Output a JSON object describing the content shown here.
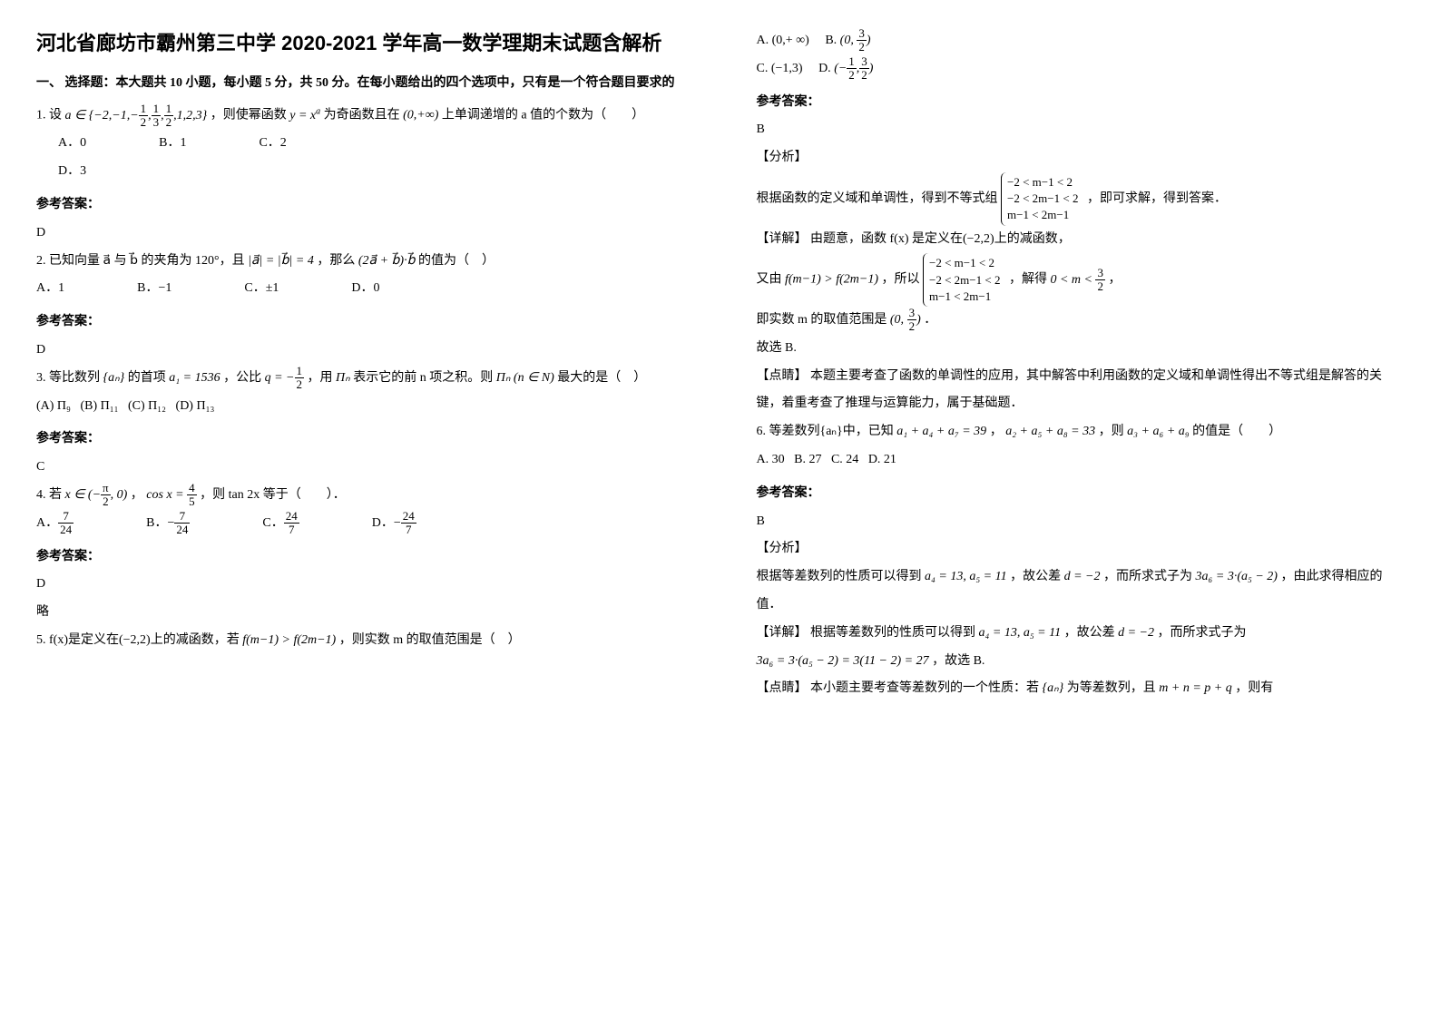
{
  "title": "河北省廊坊市霸州第三中学 2020-2021 学年高一数学理期末试题含解析",
  "section1_head": "一、 选择题：本大题共 10 小题，每小题 5 分，共 50 分。在每小题给出的四个选项中，只有是一个符合题目要求的",
  "q1_stem_pre": "1. 设",
  "q1_set": "a ∈ {−2,−1,−",
  "q1_set2": ",1,2,3}",
  "q1_stem_mid": "，则使幂函数 ",
  "q1_fn": "y = x",
  "q1_stem_post": " 为奇函数且在 ",
  "q1_interval": "(0,+∞)",
  "q1_tail": " 上单调递增的 a 值的个数为（　　）",
  "q1_A": "A．0",
  "q1_B": "B．1",
  "q1_C": "C．2",
  "q1_D": "D．3",
  "ref_label": "参考答案：",
  "q1_ans": "D",
  "q2_stem_a": "2. 已知向量 a⃗ 与 b⃗ 的夹角为 120°，且 ",
  "q2_norm": "|a⃗| = |b⃗| = 4",
  "q2_stem_b": "，那么 ",
  "q2_expr": "(2a⃗ + b⃗)·b⃗",
  "q2_stem_c": " 的值为（　）",
  "q2_A": "A．1",
  "q2_B": "B．−1",
  "q2_C": "C．±1",
  "q2_D": "D．0",
  "q2_ans": "D",
  "q3_stem_a": "3. 等比数列 ",
  "q3_seq": "{aₙ}",
  "q3_stem_b": " 的首项 ",
  "q3_a1": "a₁ = 1536",
  "q3_stem_c": "，公比 ",
  "q3_q": "q = −",
  "q3_stem_d": " ，用 ",
  "q3_pi": "Πₙ",
  "q3_stem_e": " 表示它的前 n 项之积。则 ",
  "q3_pin": "Πₙ (n ∈ N)",
  "q3_stem_f": " 最大的是（　）",
  "q3_A": "(A) Π₉",
  "q3_B": "(B) Π₁₁",
  "q3_C": "(C) Π₁₂",
  "q3_D": "(D) Π₁₃",
  "q3_ans": "C",
  "q4_stem_a": "4. 若 ",
  "q4_xin": "x ∈ (−",
  "q4_xin2": ", 0)",
  "q4_stem_b": "，",
  "q4_cos": "cos x = ",
  "q4_stem_c": "，则 tan 2x 等于（　　）．",
  "q4_A": "A．",
  "q4_B": "B．−",
  "q4_C": "C．",
  "q4_D": "D．−",
  "q4_ans": "D",
  "q4_note": "略",
  "q5_stem_a": "5. f(x)是定义在(−2,2)上的减函数，若 ",
  "q5_ineq": "f(m−1) > f(2m−1)",
  "q5_stem_b": "，则实数 m 的取值范围是（　）",
  "q5_A": "A. (0,+ ∞)",
  "q5_B": "B. ",
  "q5_Bv": "(0, ",
  "q5_Bv2": ")",
  "q5_C": "C. (−1,3)",
  "q5_D": "D. ",
  "q5_Dv": "(−",
  "q5_Dv2": ")",
  "q5_ans": "B",
  "analysis_label": "【分析】",
  "q5_ana1": "根据函数的定义域和单调性，得到不等式组 ",
  "q5_ana1b": "，即可求解，得到答案．",
  "detail_label": "【详解】",
  "q5_det1": "由题意，函数 f(x) 是定义在(−2,2)上的减函数，",
  "q5_det2a": "又由 ",
  "q5_det2b": "f(m−1) > f(2m−1)",
  "q5_det2c": "，所以 ",
  "q5_det2d": "，解得 ",
  "q5_det2e": "0 < m < ",
  "q5_det2f": "，",
  "q5_det3a": "即实数 m 的取值范围是 ",
  "q5_det3b": "(0, ",
  "q5_det3c": ")",
  "q5_det3d": "．",
  "q5_det4": "故选 B.",
  "point_label": "【点睛】",
  "q5_pt": "本题主要考查了函数的单调性的应用，其中解答中利用函数的定义域和单调性得出不等式组是解答的关键，着重考查了推理与运算能力，属于基础题．",
  "q6_stem_a": "6. 等差数列{aₙ}中，已知 ",
  "q6_e1": "a₁ + a₄ + a₇ = 39",
  "q6_stem_b": "， ",
  "q6_e2": "a₂ + a₅ + a₈ = 33",
  "q6_stem_c": "，则 ",
  "q6_e3": "a₃ + a₆ + a₉",
  "q6_stem_d": " 的值是（　　）",
  "q6_A": "A. 30",
  "q6_B": "B. 27",
  "q6_C": "C. 24",
  "q6_D": "D. 21",
  "q6_ans": "B",
  "q6_ana": "根据等差数列的性质可以得到 ",
  "q6_ana_v": "a₄ = 13, a₅ = 11",
  "q6_ana2": "，故公差 ",
  "q6_ana_d": "d = −2",
  "q6_ana3": "，而所求式子为 ",
  "q6_ana_e": "3a₆ = 3·(a₅ − 2)",
  "q6_ana4": "，由此求得相应的值．",
  "q6_det": "根据等差数列的性质可以得到 ",
  "q6_det_v": "a₄ = 13, a₅ = 11",
  "q6_det2": "，故公差 ",
  "q6_det_d": "d = −2",
  "q6_det3": "，而所求式子为",
  "q6_det_e": "3a₆ = 3·(a₅ − 2) = 3(11 − 2) = 27",
  "q6_det4": "，故选 B.",
  "q6_pt": "本小题主要考查等差数列的一个性质：若 ",
  "q6_pt_s": "{aₙ}",
  "q6_pt2": " 为等差数列，且 ",
  "q6_pt_e": "m + n = p + q",
  "q6_pt3": "，则有",
  "brace1_l1": "−2 < m−1 < 2",
  "brace1_l2": "−2 < 2m−1 < 2",
  "brace1_l3": "m−1 < 2m−1",
  "f12": "1",
  "f12d": "2",
  "f13": "1",
  "f13d": "3",
  "f32": "3",
  "f32d": "2",
  "f45": "4",
  "f45d": "5",
  "f724": "7",
  "f724d": "24",
  "f247": "24",
  "f247d": "7",
  "pi2": "π",
  "pi2d": "2"
}
